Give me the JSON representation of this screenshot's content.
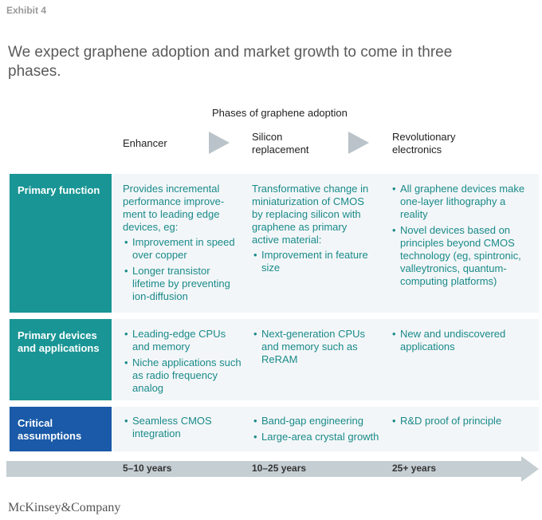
{
  "exhibit": "Exhibit 4",
  "headline": "We expect graphene adoption and market growth to come in three phases.",
  "phases_title": "Phases of graphene adoption",
  "phases": [
    "Enhancer",
    "Silicon replacement",
    "Revolutionary electronics"
  ],
  "colors": {
    "teal": "#1a9595",
    "blue": "#1a5aa8",
    "accent_text": "#1a8a8a",
    "arrow": "#c5ced3"
  },
  "rows": [
    {
      "label": "Primary function",
      "cells": [
        {
          "text": "Provides incremental performance improve-ment to leading edge devices, eg:",
          "bullets": [
            "Improvement in speed over copper",
            "Longer transistor lifetime by preventing ion-diffusion"
          ]
        },
        {
          "text": "Transformative change in miniaturization of CMOS by replacing silicon with graphene as primary active material:",
          "bullets": [
            "Improvement in feature size"
          ]
        },
        {
          "text": "",
          "bullets": [
            "All graphene devices make one-layer lithography a reality",
            "Novel devices based on principles beyond CMOS technology (eg, spintronic, valleytronics, quantum-computing platforms)"
          ]
        }
      ]
    },
    {
      "label": "Primary devices and applications",
      "cells": [
        {
          "text": "",
          "bullets": [
            "Leading-edge CPUs and memory",
            "Niche applications such as radio frequency analog"
          ]
        },
        {
          "text": "",
          "bullets": [
            "Next-generation CPUs and memory such as ReRAM"
          ]
        },
        {
          "text": "",
          "bullets": [
            "New and undiscovered applications"
          ]
        }
      ]
    },
    {
      "label": "Critical assumptions",
      "cells": [
        {
          "text": "",
          "bullets": [
            "Seamless CMOS integration"
          ]
        },
        {
          "text": "",
          "bullets": [
            "Band-gap engineering",
            "Large-area crystal growth"
          ]
        },
        {
          "text": "",
          "bullets": [
            "R&D proof of principle"
          ]
        }
      ]
    }
  ],
  "timeline": [
    "5–10 years",
    "10–25 years",
    "25+ years"
  ],
  "logo": "McKinsey&Company"
}
